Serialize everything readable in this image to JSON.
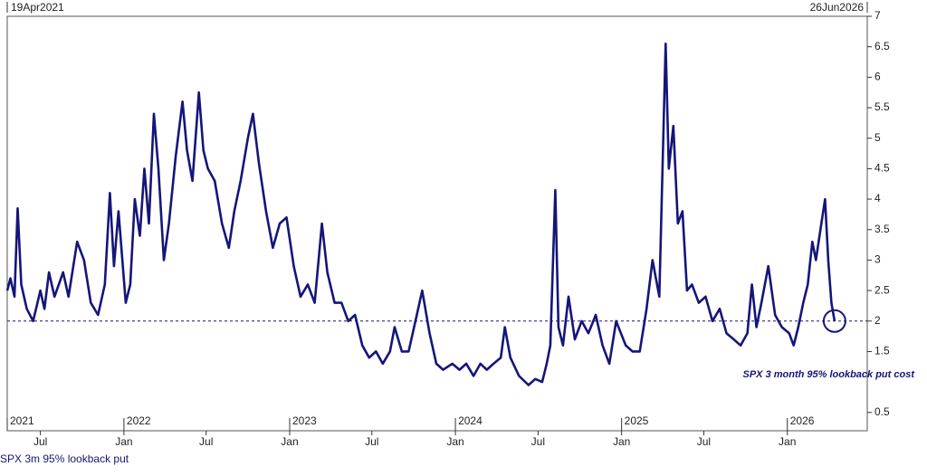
{
  "chart_data": {
    "type": "line",
    "xlim": [
      {
        "value": "2021-04-19",
        "label": "19Apr2021"
      },
      {
        "value": "2026-06-26",
        "label": "26Jun2026"
      }
    ],
    "xticks": [
      {
        "value": "2021-07-01",
        "label": "Jul"
      },
      {
        "value": "2022-01-01",
        "label": "Jan"
      },
      {
        "value": "2022-07-01",
        "label": "Jul"
      },
      {
        "value": "2023-01-01",
        "label": "Jan"
      },
      {
        "value": "2023-07-01",
        "label": "Jul"
      },
      {
        "value": "2024-01-01",
        "label": "Jan"
      },
      {
        "value": "2024-07-01",
        "label": "Jul"
      },
      {
        "value": "2025-01-01",
        "label": "Jan"
      },
      {
        "value": "2025-07-01",
        "label": "Jul"
      },
      {
        "value": "2026-01-01",
        "label": "Jan"
      }
    ],
    "year_labels": [
      {
        "value": "2021-01-01",
        "label": "2021"
      },
      {
        "value": "2022-01-01",
        "label": "2022"
      },
      {
        "value": "2023-01-01",
        "label": "2023"
      },
      {
        "value": "2024-01-01",
        "label": "2024"
      },
      {
        "value": "2025-01-01",
        "label": "2025"
      },
      {
        "value": "2026-01-01",
        "label": "2026"
      }
    ],
    "ylim": [
      0.2,
      7
    ],
    "yticks": [
      0.5,
      1.5,
      2,
      2.5,
      3,
      3.5,
      4,
      4.5,
      5,
      5.5,
      6,
      6.5,
      7
    ],
    "reference_line": 2,
    "annotation": "SPX 3 month 95% lookback put cost",
    "x": [
      "2021-04-19",
      "2021-04-26",
      "2021-05-05",
      "2021-05-12",
      "2021-05-20",
      "2021-06-01",
      "2021-06-15",
      "2021-07-01",
      "2021-07-10",
      "2021-07-20",
      "2021-08-01",
      "2021-08-20",
      "2021-09-01",
      "2021-09-20",
      "2021-10-05",
      "2021-10-20",
      "2021-11-05",
      "2021-11-20",
      "2021-12-01",
      "2021-12-10",
      "2021-12-20",
      "2022-01-05",
      "2022-01-15",
      "2022-01-25",
      "2022-02-05",
      "2022-02-15",
      "2022-02-25",
      "2022-03-08",
      "2022-03-18",
      "2022-03-30",
      "2022-04-10",
      "2022-04-25",
      "2022-05-10",
      "2022-05-20",
      "2022-06-01",
      "2022-06-15",
      "2022-06-25",
      "2022-07-05",
      "2022-07-20",
      "2022-08-05",
      "2022-08-20",
      "2022-09-01",
      "2022-09-15",
      "2022-10-01",
      "2022-10-12",
      "2022-10-25",
      "2022-11-10",
      "2022-11-25",
      "2022-12-10",
      "2022-12-25",
      "2023-01-10",
      "2023-01-25",
      "2023-02-10",
      "2023-02-25",
      "2023-03-13",
      "2023-03-25",
      "2023-04-10",
      "2023-04-25",
      "2023-05-10",
      "2023-05-25",
      "2023-06-10",
      "2023-06-25",
      "2023-07-10",
      "2023-07-25",
      "2023-08-10",
      "2023-08-20",
      "2023-09-05",
      "2023-09-20",
      "2023-10-05",
      "2023-10-20",
      "2023-11-05",
      "2023-11-20",
      "2023-12-05",
      "2023-12-25",
      "2024-01-10",
      "2024-01-25",
      "2024-02-10",
      "2024-02-25",
      "2024-03-10",
      "2024-03-25",
      "2024-04-10",
      "2024-04-19",
      "2024-05-01",
      "2024-05-20",
      "2024-06-10",
      "2024-06-25",
      "2024-07-10",
      "2024-07-20",
      "2024-07-28",
      "2024-08-08",
      "2024-08-15",
      "2024-08-25",
      "2024-09-06",
      "2024-09-20",
      "2024-10-05",
      "2024-10-20",
      "2024-11-05",
      "2024-11-20",
      "2024-12-05",
      "2024-12-20",
      "2025-01-10",
      "2025-01-25",
      "2025-02-10",
      "2025-02-25",
      "2025-03-10",
      "2025-03-25",
      "2025-04-08",
      "2025-04-15",
      "2025-04-25",
      "2025-05-05",
      "2025-05-15",
      "2025-05-25",
      "2025-06-05",
      "2025-06-20",
      "2025-07-05",
      "2025-07-20",
      "2025-08-05",
      "2025-08-20",
      "2025-09-05",
      "2025-09-20",
      "2025-10-05",
      "2025-10-15",
      "2025-10-25",
      "2025-11-05",
      "2025-11-20",
      "2025-12-05",
      "2025-12-20",
      "2026-01-05",
      "2026-01-15",
      "2026-01-25",
      "2026-02-05",
      "2026-02-15",
      "2026-02-25",
      "2026-03-05",
      "2026-03-15",
      "2026-03-25",
      "2026-04-01",
      "2026-04-08",
      "2026-04-15"
    ],
    "series": [
      {
        "name": "SPX 3m 95% lookback put",
        "color": "#15157a",
        "values": [
          2.5,
          2.7,
          2.4,
          3.85,
          2.6,
          2.2,
          2.0,
          2.5,
          2.2,
          2.8,
          2.4,
          2.8,
          2.4,
          3.3,
          3.0,
          2.3,
          2.1,
          2.6,
          4.1,
          2.9,
          3.8,
          2.3,
          2.6,
          4.0,
          3.4,
          4.5,
          3.6,
          5.4,
          4.5,
          3.0,
          3.6,
          4.7,
          5.6,
          4.8,
          4.3,
          5.75,
          4.8,
          4.5,
          4.3,
          3.6,
          3.2,
          3.8,
          4.3,
          5.0,
          5.4,
          4.6,
          3.8,
          3.2,
          3.6,
          3.7,
          2.9,
          2.4,
          2.6,
          2.3,
          3.6,
          2.8,
          2.3,
          2.3,
          2.0,
          2.1,
          1.6,
          1.4,
          1.5,
          1.3,
          1.5,
          1.9,
          1.5,
          1.5,
          2.0,
          2.5,
          1.8,
          1.3,
          1.2,
          1.3,
          1.2,
          1.3,
          1.1,
          1.3,
          1.2,
          1.3,
          1.4,
          1.9,
          1.4,
          1.1,
          0.95,
          1.05,
          1.0,
          1.3,
          1.6,
          4.15,
          1.9,
          1.6,
          2.4,
          1.7,
          2.0,
          1.8,
          2.1,
          1.6,
          1.3,
          2.0,
          1.6,
          1.5,
          1.5,
          2.2,
          3.0,
          2.4,
          6.55,
          4.5,
          5.2,
          3.6,
          3.8,
          2.5,
          2.6,
          2.3,
          2.4,
          2.0,
          2.2,
          1.8,
          1.7,
          1.6,
          1.8,
          2.6,
          1.9,
          2.3,
          2.9,
          2.1,
          1.9,
          1.8,
          1.6,
          1.9,
          2.3,
          2.6,
          3.3,
          3.0,
          3.5,
          4.0,
          3.0,
          2.3,
          2.0
        ]
      }
    ]
  }
}
